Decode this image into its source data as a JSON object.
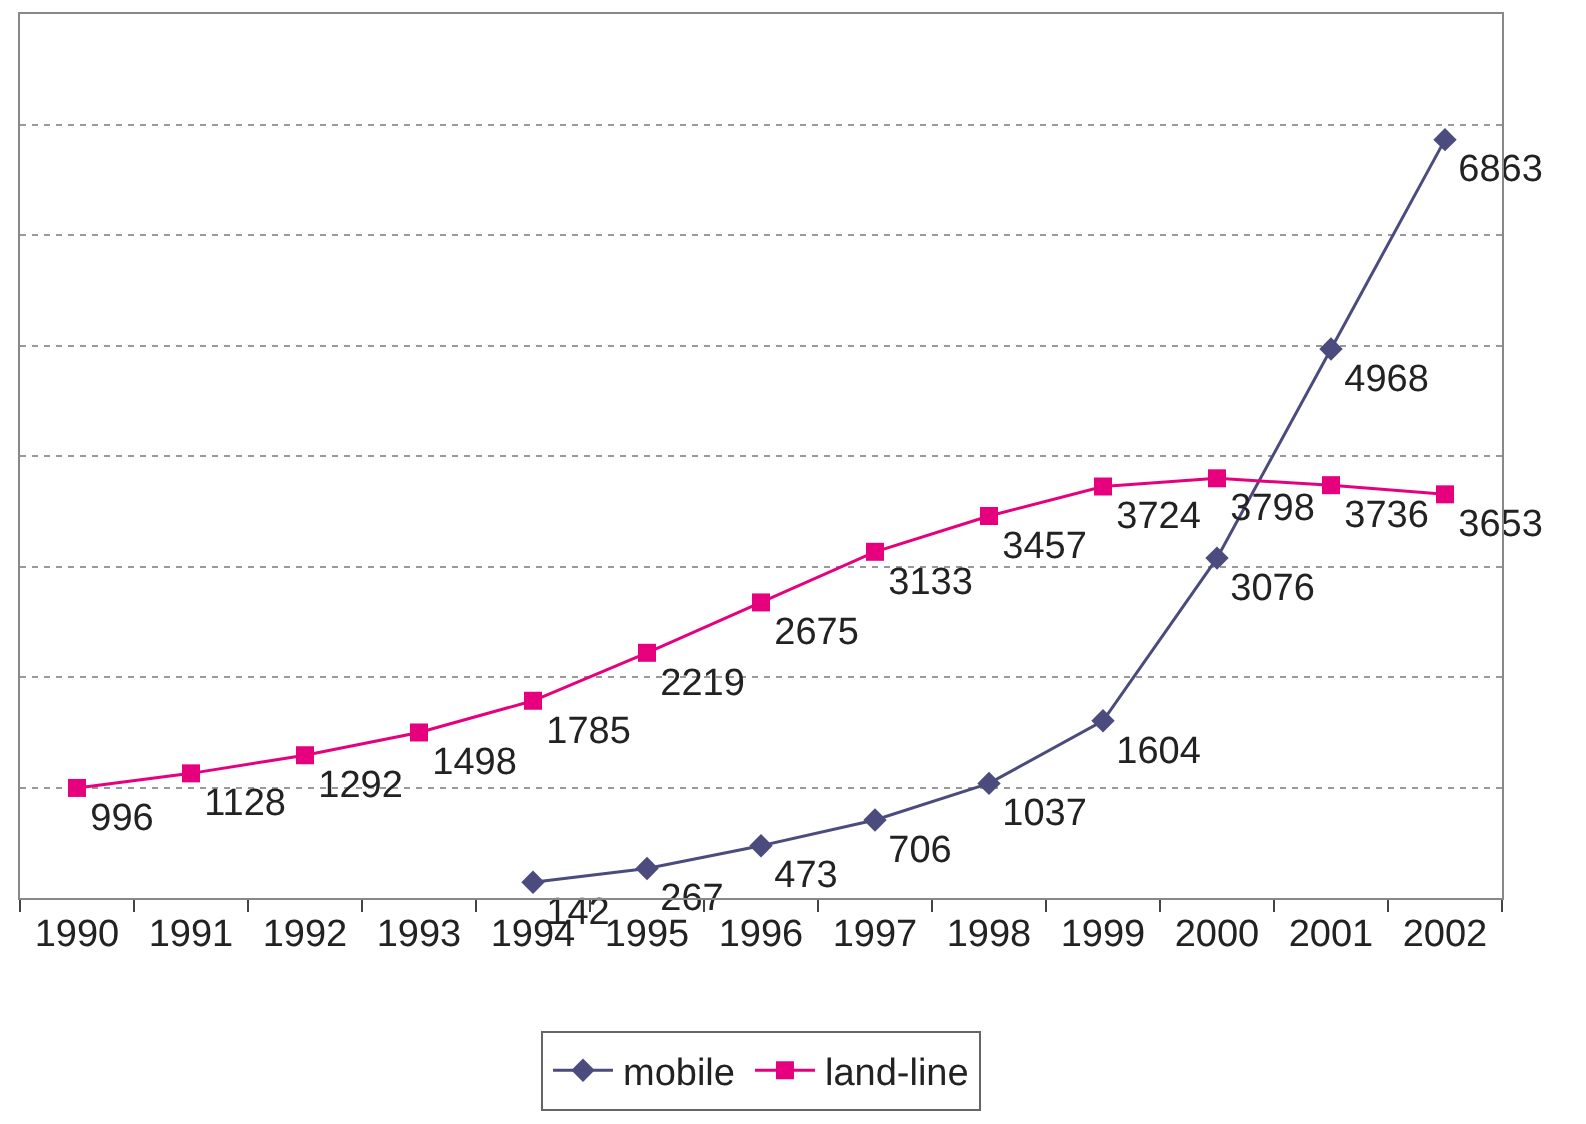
{
  "chart_data": {
    "type": "line",
    "categories": [
      "1990",
      "1991",
      "1992",
      "1993",
      "1994",
      "1995",
      "1996",
      "1997",
      "1998",
      "1999",
      "2000",
      "2001",
      "2002"
    ],
    "series": [
      {
        "name": "mobile",
        "color": "#4b4b7d",
        "marker": "diamond",
        "values": [
          null,
          null,
          null,
          null,
          142,
          267,
          473,
          706,
          1037,
          1604,
          3076,
          4968,
          6863
        ]
      },
      {
        "name": "land-line",
        "color": "#e6007e",
        "marker": "square",
        "values": [
          996,
          1128,
          1292,
          1498,
          1785,
          2219,
          2675,
          3133,
          3457,
          3724,
          3798,
          3736,
          3653
        ]
      }
    ],
    "ylim": [
      0,
      8000
    ],
    "yticks": [
      {
        "value": 0,
        "label": null
      },
      {
        "value": 1000,
        "label": null
      },
      {
        "value": 2000,
        "label": null
      },
      {
        "value": 3000,
        "label": null
      },
      {
        "value": 4000,
        "label": null
      },
      {
        "value": 5000,
        "label": null
      },
      {
        "value": 6000,
        "label": null
      },
      {
        "value": 7000,
        "label": null
      },
      {
        "value": 8000,
        "label": null
      }
    ],
    "tick_labels": "x",
    "grid": "y",
    "legend": "bottom",
    "line_style": "solid",
    "data_labels": true
  }
}
